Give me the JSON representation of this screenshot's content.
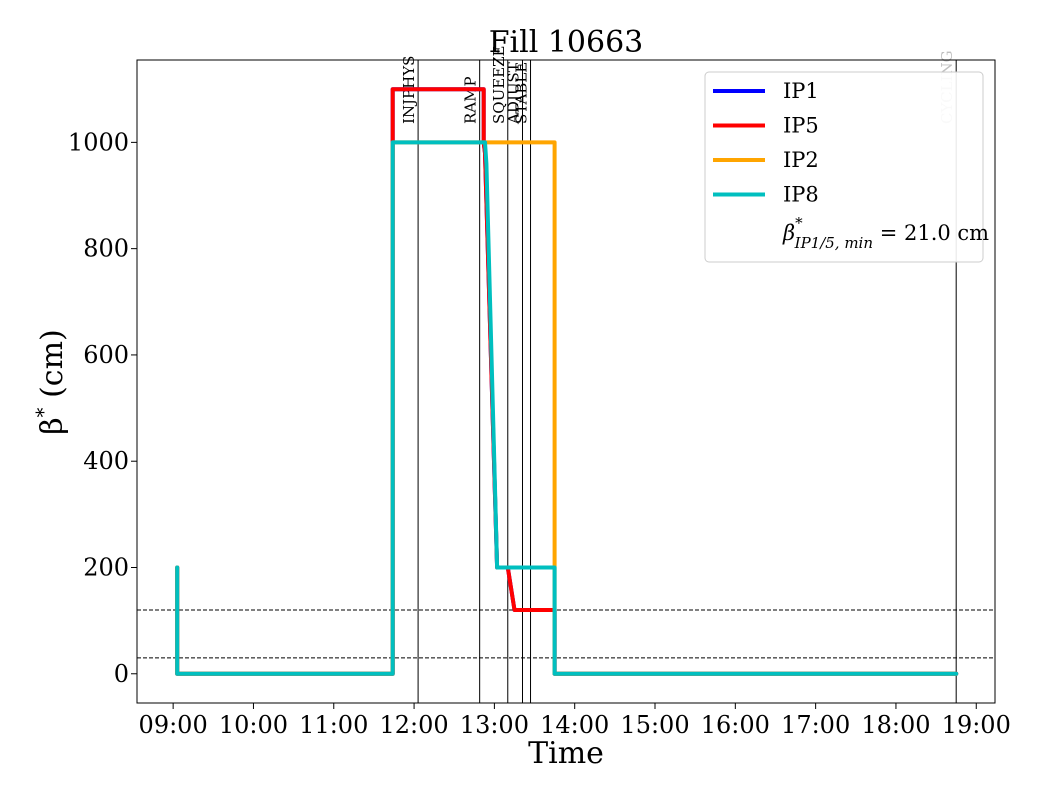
{
  "chart_data": {
    "type": "line",
    "title": "Fill 10663",
    "xlabel": "Time",
    "ylabel": "β* (cm)",
    "x_ticks": [
      "09:00",
      "10:00",
      "11:00",
      "12:00",
      "13:00",
      "14:00",
      "15:00",
      "16:00",
      "17:00",
      "18:00",
      "19:00"
    ],
    "y_ticks": [
      0,
      200,
      400,
      600,
      800,
      1000
    ],
    "xlim": [
      "08:33",
      "19:14"
    ],
    "ylim": [
      -55,
      1155
    ],
    "grid": false,
    "legend_position": "top-right",
    "series": [
      {
        "name": "IP1",
        "color": "#0000ff",
        "points": [
          [
            "09:03",
            200
          ],
          [
            "09:03",
            0
          ],
          [
            "11:44",
            0
          ],
          [
            "11:44",
            1100
          ],
          [
            "12:52",
            1100
          ],
          [
            "12:52",
            1000
          ],
          [
            "12:53",
            980
          ],
          [
            "13:02",
            200
          ],
          [
            "13:10",
            200
          ],
          [
            "13:15",
            120
          ],
          [
            "13:45",
            120
          ],
          [
            "13:45",
            0
          ],
          [
            "18:45",
            0
          ]
        ]
      },
      {
        "name": "IP5",
        "color": "#ff0000",
        "points": [
          [
            "09:03",
            200
          ],
          [
            "09:03",
            0
          ],
          [
            "11:44",
            0
          ],
          [
            "11:44",
            1100
          ],
          [
            "12:52",
            1100
          ],
          [
            "12:52",
            1000
          ],
          [
            "12:53",
            980
          ],
          [
            "13:02",
            200
          ],
          [
            "13:10",
            200
          ],
          [
            "13:15",
            120
          ],
          [
            "13:45",
            120
          ],
          [
            "13:45",
            0
          ],
          [
            "18:45",
            0
          ]
        ]
      },
      {
        "name": "IP2",
        "color": "#ffa500",
        "points": [
          [
            "09:03",
            200
          ],
          [
            "09:03",
            0
          ],
          [
            "11:44",
            0
          ],
          [
            "11:44",
            1000
          ],
          [
            "13:45",
            1000
          ],
          [
            "13:45",
            0
          ],
          [
            "18:45",
            0
          ]
        ]
      },
      {
        "name": "IP8",
        "color": "#00bfbf",
        "points": [
          [
            "09:03",
            200
          ],
          [
            "09:03",
            0
          ],
          [
            "11:44",
            0
          ],
          [
            "11:44",
            1000
          ],
          [
            "12:53",
            1000
          ],
          [
            "12:54",
            960
          ],
          [
            "13:02",
            200
          ],
          [
            "13:45",
            200
          ],
          [
            "13:45",
            0
          ],
          [
            "18:45",
            0
          ]
        ]
      }
    ],
    "annotations": {
      "beta_min_label": "β*IP1/5, min = 21.0 cm",
      "beta_min_base": "β",
      "beta_min_sup": "*",
      "beta_min_sub": "IP1/5, min",
      "beta_min_value": " = 21.0 cm",
      "horizontal_lines": [
        {
          "y": 120,
          "style": "dashed",
          "color": "#000000"
        },
        {
          "y": 30,
          "style": "dashed",
          "color": "#000000"
        }
      ],
      "phases": [
        {
          "label": "INJPHYS",
          "time": "12:03",
          "color": "#000000"
        },
        {
          "label": "RAMP",
          "time": "12:49",
          "color": "#000000"
        },
        {
          "label": "SQUEEZE",
          "time": "13:10",
          "color": "#000000"
        },
        {
          "label": "ADJUST",
          "time": "13:21",
          "color": "#000000"
        },
        {
          "label": "STABLE",
          "time": "13:27",
          "color": "#000000"
        },
        {
          "label": "CYCLING",
          "time": "18:45",
          "color": "#c0c0c0"
        }
      ]
    }
  }
}
